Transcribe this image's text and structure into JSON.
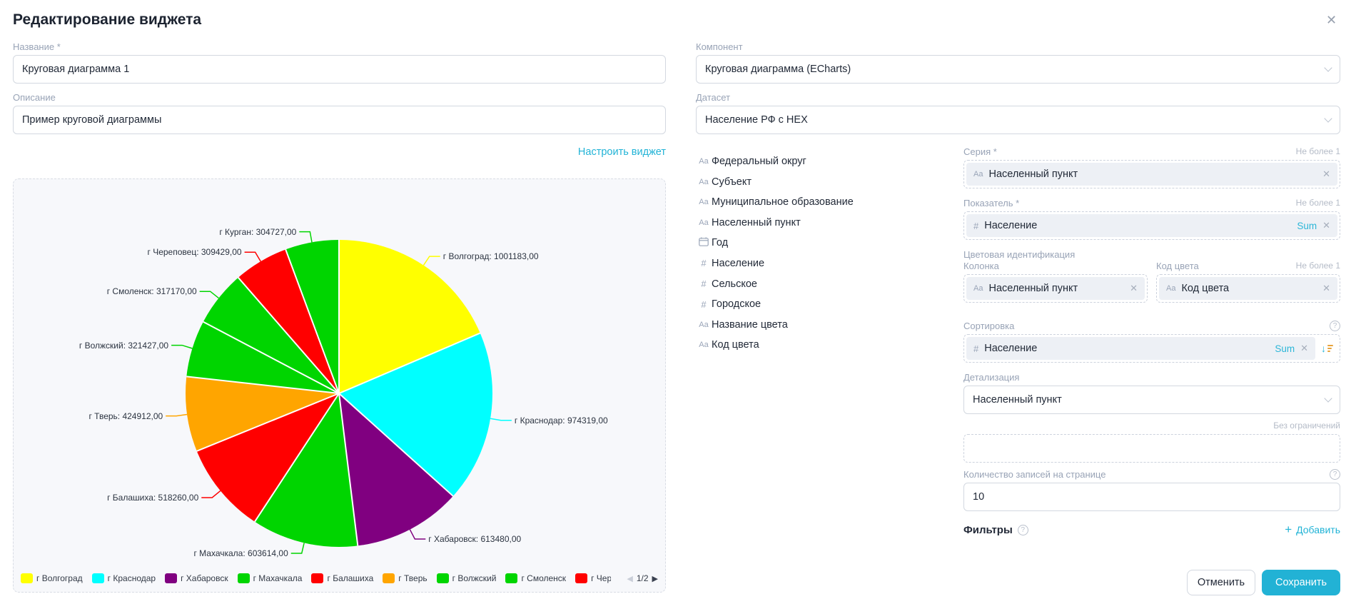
{
  "dialog": {
    "title": "Редактирование виджета",
    "close_icon": "✕"
  },
  "left": {
    "name_label": "Название *",
    "name_value": "Круговая диаграмма 1",
    "desc_label": "Описание",
    "desc_value": "Пример круговой диаграммы",
    "configure_link": "Настроить виджет"
  },
  "right": {
    "component_label": "Компонент",
    "component_value": "Круговая диаграмма (ECharts)",
    "dataset_label": "Датасет",
    "dataset_value": "Население РФ с HEX",
    "fields": [
      {
        "type": "Aa",
        "name": "Федеральный округ"
      },
      {
        "type": "Aa",
        "name": "Субъект"
      },
      {
        "type": "Aa",
        "name": "Муниципальное образование"
      },
      {
        "type": "Aa",
        "name": "Населенный пункт"
      },
      {
        "type": "date",
        "name": "Год"
      },
      {
        "type": "#",
        "name": "Население"
      },
      {
        "type": "#",
        "name": "Сельское"
      },
      {
        "type": "#",
        "name": "Городское"
      },
      {
        "type": "Aa",
        "name": "Название цвета"
      },
      {
        "type": "Aa",
        "name": "Код цвета"
      }
    ],
    "config": {
      "series": {
        "label": "Серия *",
        "limit": "Не более 1",
        "chip_prefix": "Aa",
        "chip_value": "Населенный пункт"
      },
      "measure": {
        "label": "Показатель *",
        "limit": "Не более 1",
        "chip_prefix": "#",
        "chip_value": "Население",
        "agg": "Sum"
      },
      "color_ident": {
        "label": "Цветовая идентификация",
        "col_label": "Колонка",
        "code_label": "Код цвета",
        "limit": "Не более 1",
        "col_chip": {
          "prefix": "Aa",
          "value": "Населенный пункт"
        },
        "code_chip": {
          "prefix": "Aa",
          "value": "Код цвета"
        }
      },
      "sort": {
        "label": "Сортировка",
        "chip_prefix": "#",
        "chip_value": "Население",
        "agg": "Sum"
      },
      "drill": {
        "label": "Детализация",
        "value": "Населенный пункт"
      },
      "no_limit_label": "Без ограничений",
      "page_size": {
        "label": "Количество записей на странице",
        "value": "10"
      },
      "filters": {
        "label": "Фильтры",
        "add_label": "Добавить"
      }
    }
  },
  "footer": {
    "cancel_label": "Отменить",
    "save_label": "Сохранить"
  },
  "colors": {
    "accent": "#22b2d5",
    "label_gray": "#98a3b6",
    "sort_bars_orange": "#e8a43c"
  },
  "chart_data": {
    "type": "pie",
    "title": "",
    "categories": [
      "г Волгоград",
      "г Краснодар",
      "г Хабаровск",
      "г Махачкала",
      "г Балашиха",
      "г Тверь",
      "г Волжский",
      "г Смоленск",
      "г Череповец",
      "г Курган"
    ],
    "values": [
      1001183,
      974319,
      613480,
      603614,
      518260,
      424912,
      321427,
      317170,
      309429,
      304727
    ],
    "colors": [
      "#ffff00",
      "#00ffff",
      "#800080",
      "#00d500",
      "#ff0000",
      "#ffa500",
      "#00d500",
      "#00d500",
      "#ff0000",
      "#00d500"
    ],
    "label_format": "{name}: {value},00",
    "legend_position": "bottom",
    "legend_page": "1/2",
    "legend_visible_count": 9,
    "start_angle_deg": 0,
    "direction": "clockwise"
  }
}
